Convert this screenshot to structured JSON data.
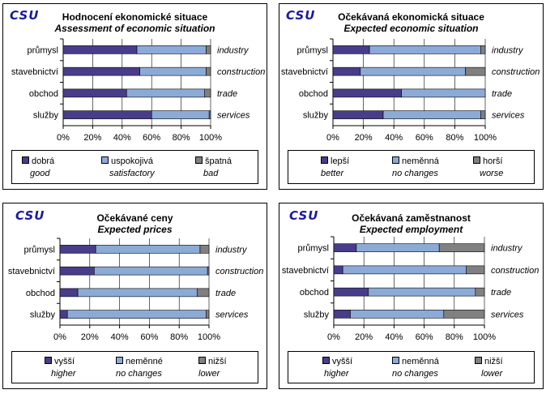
{
  "logo_text": "CSU",
  "colors": {
    "c1": "#483d8b",
    "c2": "#8caad6",
    "c3": "#808080"
  },
  "chart_data": [
    {
      "type": "bar",
      "stacked": true,
      "orientation": "horizontal",
      "title_cz": "Hodnocení  ekonomické situace",
      "title_en": "Assessment of economic situation",
      "categories_cz": [
        "průmysl",
        "stavebnictví",
        "obchod",
        "služby"
      ],
      "categories_en": [
        "industry",
        "construction",
        "trade",
        "services"
      ],
      "xticks": [
        "0%",
        "20%",
        "40%",
        "60%",
        "80%",
        "100%"
      ],
      "xlim": [
        0,
        100
      ],
      "series": [
        {
          "name": "dobrá",
          "name_en": "good",
          "color": "#483d8b",
          "values": [
            50,
            52,
            43,
            60
          ]
        },
        {
          "name": "uspokojivá",
          "name_en": "satisfactory",
          "color": "#8caad6",
          "values": [
            47,
            45,
            53,
            39
          ]
        },
        {
          "name": "špatná",
          "name_en": "bad",
          "color": "#808080",
          "values": [
            3,
            3,
            4,
            1
          ]
        }
      ]
    },
    {
      "type": "bar",
      "stacked": true,
      "orientation": "horizontal",
      "title_cz": "Očekávaná  ekonomická situace",
      "title_en": "Expected economic situation",
      "categories_cz": [
        "průmysl",
        "stavebnictví",
        "obchod",
        "služby"
      ],
      "categories_en": [
        "industry",
        "construction",
        "trade",
        "services"
      ],
      "xticks": [
        "0%",
        "20%",
        "40%",
        "60%",
        "80%",
        "100%"
      ],
      "xlim": [
        0,
        100
      ],
      "series": [
        {
          "name": "lepší",
          "name_en": "better",
          "color": "#483d8b",
          "values": [
            24,
            18,
            45,
            33
          ]
        },
        {
          "name": "neměnná",
          "name_en": "no changes",
          "color": "#8caad6",
          "values": [
            73,
            69,
            55,
            64
          ]
        },
        {
          "name": "horší",
          "name_en": "worse",
          "color": "#808080",
          "values": [
            3,
            13,
            0,
            3
          ]
        }
      ]
    },
    {
      "type": "bar",
      "stacked": true,
      "orientation": "horizontal",
      "title_cz": "Očekávané ceny",
      "title_en": "Expected prices",
      "categories_cz": [
        "průmysl",
        "stavebnictví",
        "obchod",
        "služby"
      ],
      "categories_en": [
        "industry",
        "construction",
        "trade",
        "services"
      ],
      "xticks": [
        "0%",
        "20%",
        "40%",
        "60%",
        "80%",
        "100%"
      ],
      "xlim": [
        0,
        100
      ],
      "series": [
        {
          "name": "vyšší",
          "name_en": "higher",
          "color": "#483d8b",
          "values": [
            24,
            23,
            12,
            5
          ]
        },
        {
          "name": "neměnné",
          "name_en": "no changes",
          "color": "#8caad6",
          "values": [
            70,
            76,
            80,
            93
          ]
        },
        {
          "name": "nižší",
          "name_en": "lower",
          "color": "#808080",
          "values": [
            6,
            1,
            8,
            2
          ]
        }
      ]
    },
    {
      "type": "bar",
      "stacked": true,
      "orientation": "horizontal",
      "title_cz": "Očekávaná zaměstnanost",
      "title_en": "Expected employment",
      "categories_cz": [
        "průmysl",
        "stavebnictví",
        "obchod",
        "služby"
      ],
      "categories_en": [
        "industry",
        "construction",
        "trade",
        "services"
      ],
      "xticks": [
        "0%",
        "20%",
        "40%",
        "60%",
        "80%",
        "100%"
      ],
      "xlim": [
        0,
        100
      ],
      "series": [
        {
          "name": "vyšší",
          "name_en": "higher",
          "color": "#483d8b",
          "values": [
            15,
            6,
            23,
            11
          ]
        },
        {
          "name": "neměnná",
          "name_en": "no changes",
          "color": "#8caad6",
          "values": [
            55,
            82,
            71,
            62
          ]
        },
        {
          "name": "nižší",
          "name_en": "lower",
          "color": "#808080",
          "values": [
            30,
            12,
            6,
            27
          ]
        }
      ]
    }
  ]
}
